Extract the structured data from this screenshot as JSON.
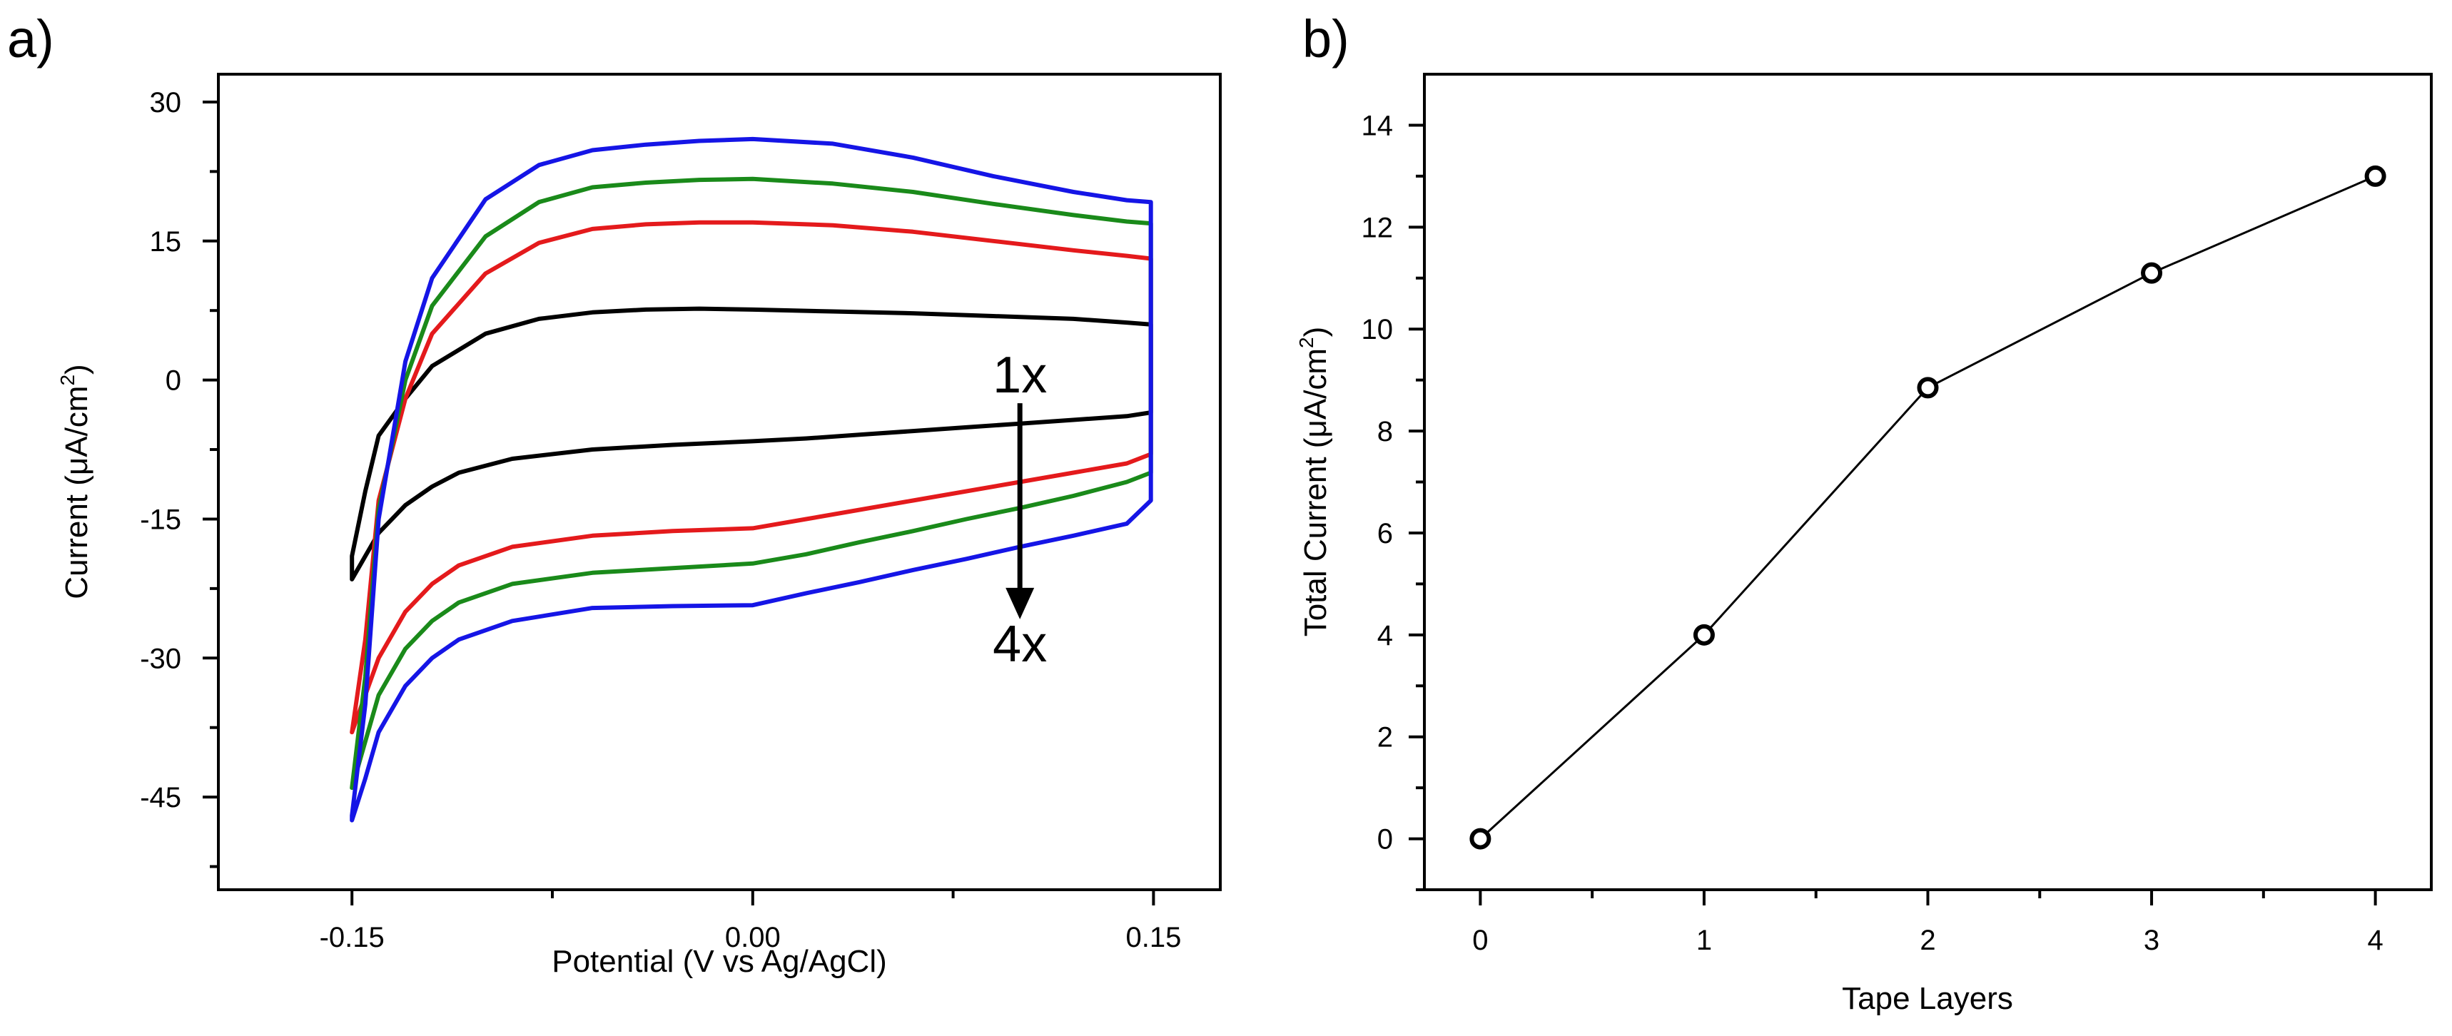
{
  "chart_data": [
    {
      "panel": "a)",
      "type": "line",
      "title": "",
      "xlabel": "Potential (V vs Ag/AgCl)",
      "ylabel": {
        "main": "Current (",
        "mu": "μ",
        "unit": "A/cm",
        "sup": "2",
        "close": ")"
      },
      "xlim": [
        -0.2,
        0.175
      ],
      "ylim": [
        -55,
        33
      ],
      "xticks": [
        -0.15,
        0.0,
        0.15
      ],
      "xtick_labels": [
        "-0.15",
        "0.00",
        "0.15"
      ],
      "yticks": [
        30,
        15,
        0,
        -15,
        -30,
        -45
      ],
      "ytick_labels": [
        "30",
        "15",
        "0",
        "-15",
        "-30",
        "-45"
      ],
      "grid": false,
      "annotations": [
        {
          "text": "1x",
          "x": 0.1,
          "y": 0.5
        },
        {
          "text": "4x",
          "x": 0.1,
          "y": -28.5
        }
      ],
      "arrow": {
        "x": 0.1,
        "y_start": -2.5,
        "y_end": -25.5
      },
      "series": [
        {
          "color": "#000000",
          "anodic": {
            "x": [
              -0.15,
              -0.145,
              -0.14,
              -0.13,
              -0.12,
              -0.1,
              -0.08,
              -0.06,
              -0.04,
              -0.02,
              0.0,
              0.03,
              0.06,
              0.09,
              0.12,
              0.14,
              0.149
            ],
            "y": [
              -19,
              -12,
              -6,
              -2,
              1.5,
              5,
              6.6,
              7.3,
              7.6,
              7.7,
              7.6,
              7.4,
              7.2,
              6.9,
              6.6,
              6.2,
              6.0
            ]
          },
          "cathodic": {
            "x": [
              0.149,
              0.14,
              0.12,
              0.1,
              0.08,
              0.06,
              0.04,
              0.02,
              0.0,
              -0.03,
              -0.06,
              -0.09,
              -0.11,
              -0.12,
              -0.13,
              -0.14,
              -0.145,
              -0.15
            ],
            "y": [
              -3.5,
              -3.9,
              -4.3,
              -4.7,
              -5.1,
              -5.5,
              -5.9,
              -6.3,
              -6.6,
              -7.0,
              -7.5,
              -8.5,
              -10,
              -11.5,
              -13.5,
              -16.5,
              -19,
              -21.5
            ]
          }
        },
        {
          "color": "#e41a1c",
          "anodic": {
            "x": [
              -0.15,
              -0.145,
              -0.14,
              -0.13,
              -0.12,
              -0.1,
              -0.08,
              -0.06,
              -0.04,
              -0.02,
              0.0,
              0.03,
              0.06,
              0.09,
              0.12,
              0.14,
              0.149
            ],
            "y": [
              -38,
              -28,
              -13,
              -2,
              5,
              11.5,
              14.8,
              16.3,
              16.8,
              17,
              17,
              16.7,
              16,
              15,
              14,
              13.4,
              13.1
            ]
          },
          "cathodic": {
            "x": [
              0.149,
              0.14,
              0.12,
              0.1,
              0.08,
              0.06,
              0.04,
              0.02,
              0.0,
              -0.03,
              -0.06,
              -0.09,
              -0.11,
              -0.12,
              -0.13,
              -0.14,
              -0.145,
              -0.15
            ],
            "y": [
              -8,
              -9,
              -10,
              -11,
              -12,
              -13,
              -14,
              -15,
              -16,
              -16.3,
              -16.8,
              -18,
              -20,
              -22,
              -25,
              -30,
              -34,
              -38
            ]
          }
        },
        {
          "color": "#1a8a1a",
          "anodic": {
            "x": [
              -0.15,
              -0.145,
              -0.14,
              -0.13,
              -0.12,
              -0.1,
              -0.08,
              -0.06,
              -0.04,
              -0.02,
              0.0,
              0.03,
              0.06,
              0.09,
              0.12,
              0.14,
              0.149
            ],
            "y": [
              -44,
              -32,
              -14,
              0,
              8,
              15.5,
              19.2,
              20.8,
              21.3,
              21.6,
              21.7,
              21.2,
              20.3,
              19,
              17.8,
              17.1,
              16.9
            ]
          },
          "cathodic": {
            "x": [
              0.149,
              0.14,
              0.12,
              0.1,
              0.08,
              0.06,
              0.04,
              0.02,
              0.0,
              -0.03,
              -0.06,
              -0.09,
              -0.11,
              -0.12,
              -0.13,
              -0.14,
              -0.145,
              -0.15
            ],
            "y": [
              -10,
              -11,
              -12.5,
              -13.8,
              -15,
              -16.3,
              -17.5,
              -18.8,
              -19.8,
              -20.3,
              -20.8,
              -22,
              -24,
              -26,
              -29,
              -34,
              -39,
              -44
            ]
          }
        },
        {
          "color": "#1515e6",
          "anodic": {
            "x": [
              -0.15,
              -0.145,
              -0.14,
              -0.13,
              -0.12,
              -0.1,
              -0.08,
              -0.06,
              -0.04,
              -0.02,
              0.0,
              0.03,
              0.06,
              0.09,
              0.12,
              0.14,
              0.149
            ],
            "y": [
              -47,
              -35,
              -15,
              2,
              11,
              19.5,
              23.2,
              24.8,
              25.4,
              25.8,
              26,
              25.5,
              24,
              22,
              20.3,
              19.4,
              19.2
            ]
          },
          "cathodic": {
            "x": [
              0.149,
              0.14,
              0.12,
              0.1,
              0.08,
              0.06,
              0.04,
              0.02,
              0.0,
              -0.03,
              -0.06,
              -0.09,
              -0.11,
              -0.12,
              -0.13,
              -0.14,
              -0.145,
              -0.15
            ],
            "y": [
              -13,
              -15.5,
              -16.8,
              -18,
              -19.3,
              -20.5,
              -21.8,
              -23,
              -24.3,
              -24.4,
              -24.6,
              -26,
              -28,
              -30,
              -33,
              -38,
              -43,
              -47.5
            ]
          }
        }
      ]
    },
    {
      "panel": "b)",
      "type": "line",
      "title": "",
      "xlabel": "Tape Layers",
      "ylabel": {
        "main": "Total Current (",
        "mu": "μ",
        "unit": "A/cm",
        "sup": "2",
        "close": ")"
      },
      "xlim": [
        -0.25,
        4.25
      ],
      "ylim": [
        -1,
        15
      ],
      "xticks": [
        0,
        1,
        2,
        3,
        4
      ],
      "xtick_labels": [
        "0",
        "1",
        "2",
        "3",
        "4"
      ],
      "yticks": [
        0,
        2,
        4,
        6,
        8,
        10,
        12,
        14
      ],
      "ytick_labels": [
        "0",
        "2",
        "4",
        "6",
        "8",
        "10",
        "12",
        "14"
      ],
      "grid": false,
      "marker": "open-circle",
      "x": [
        0,
        1,
        2,
        3,
        4
      ],
      "values": [
        0,
        4,
        8.85,
        11.1,
        13
      ]
    }
  ]
}
